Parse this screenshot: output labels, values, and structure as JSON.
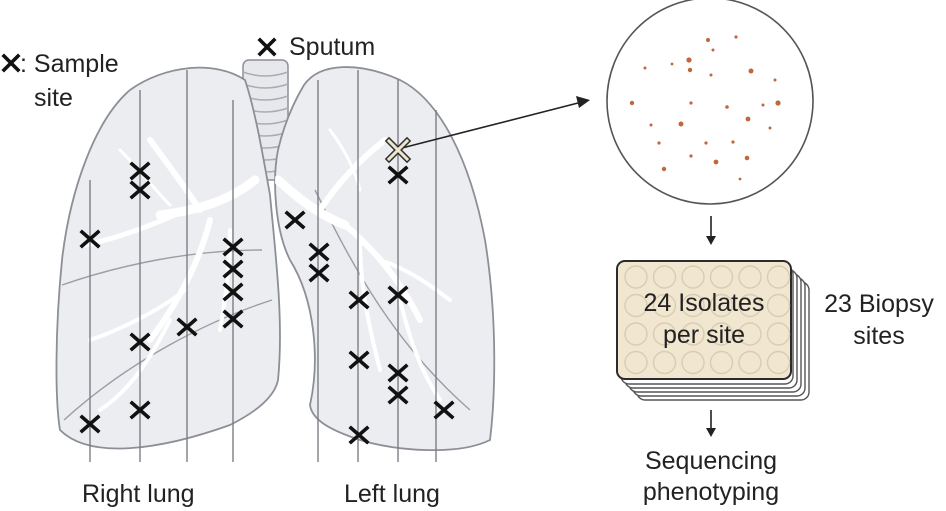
{
  "legend": {
    "marker": "✕",
    "label_line1": ": Sample",
    "label_line2": "site"
  },
  "sputum_label": "Sputum",
  "lung_labels": {
    "right": "Right lung",
    "left": "Left lung"
  },
  "plate": {
    "line1": "24 Isolates",
    "line2": "per site"
  },
  "biopsy": {
    "line1": "23 Biopsy",
    "line2": "sites"
  },
  "output": {
    "line1": "Sequencing",
    "line2": "phenotyping"
  },
  "colors": {
    "lung_fill": "#ecedf0",
    "lung_stroke": "#8c8f96",
    "vessel": "#ffffff",
    "grid_line": "#7d7d85",
    "marker": "#111111",
    "highlight_marker_fill": "#efe6cf",
    "colony": "#c0673b",
    "plate_fill": "#f1e6d0",
    "plate_stroke": "#2b2b2b",
    "trachea_fill": "#e7e8ec"
  }
}
